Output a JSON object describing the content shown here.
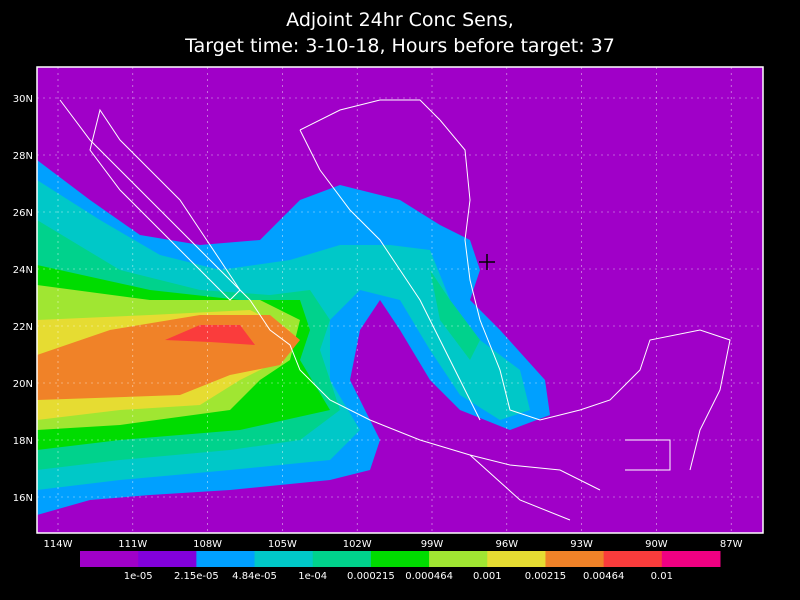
{
  "title": [
    "Adjoint 24hr Conc Sens,",
    "Target time: 3-10-18, Hours before target: 37"
  ],
  "lon_ticks": [
    "114W",
    "111W",
    "108W",
    "105W",
    "102W",
    "99W",
    "96W",
    "93W",
    "90W",
    "87W"
  ],
  "lat_ticks": [
    "30N",
    "28N",
    "26N",
    "24N",
    "22N",
    "20N",
    "18N",
    "16N"
  ],
  "colorbar": {
    "colors": [
      "#a000c8",
      "#8200dc",
      "#00a0ff",
      "#00c8c8",
      "#00d28c",
      "#00dc00",
      "#a0e632",
      "#e6dc32",
      "#f08228",
      "#fa3c3c",
      "#f00082"
    ],
    "labels": [
      "1e-05",
      "2.15e-05",
      "4.84e-05",
      "1e-04",
      "0.000215",
      "0.000464",
      "0.001",
      "0.00215",
      "0.00464",
      "0.01"
    ]
  }
}
